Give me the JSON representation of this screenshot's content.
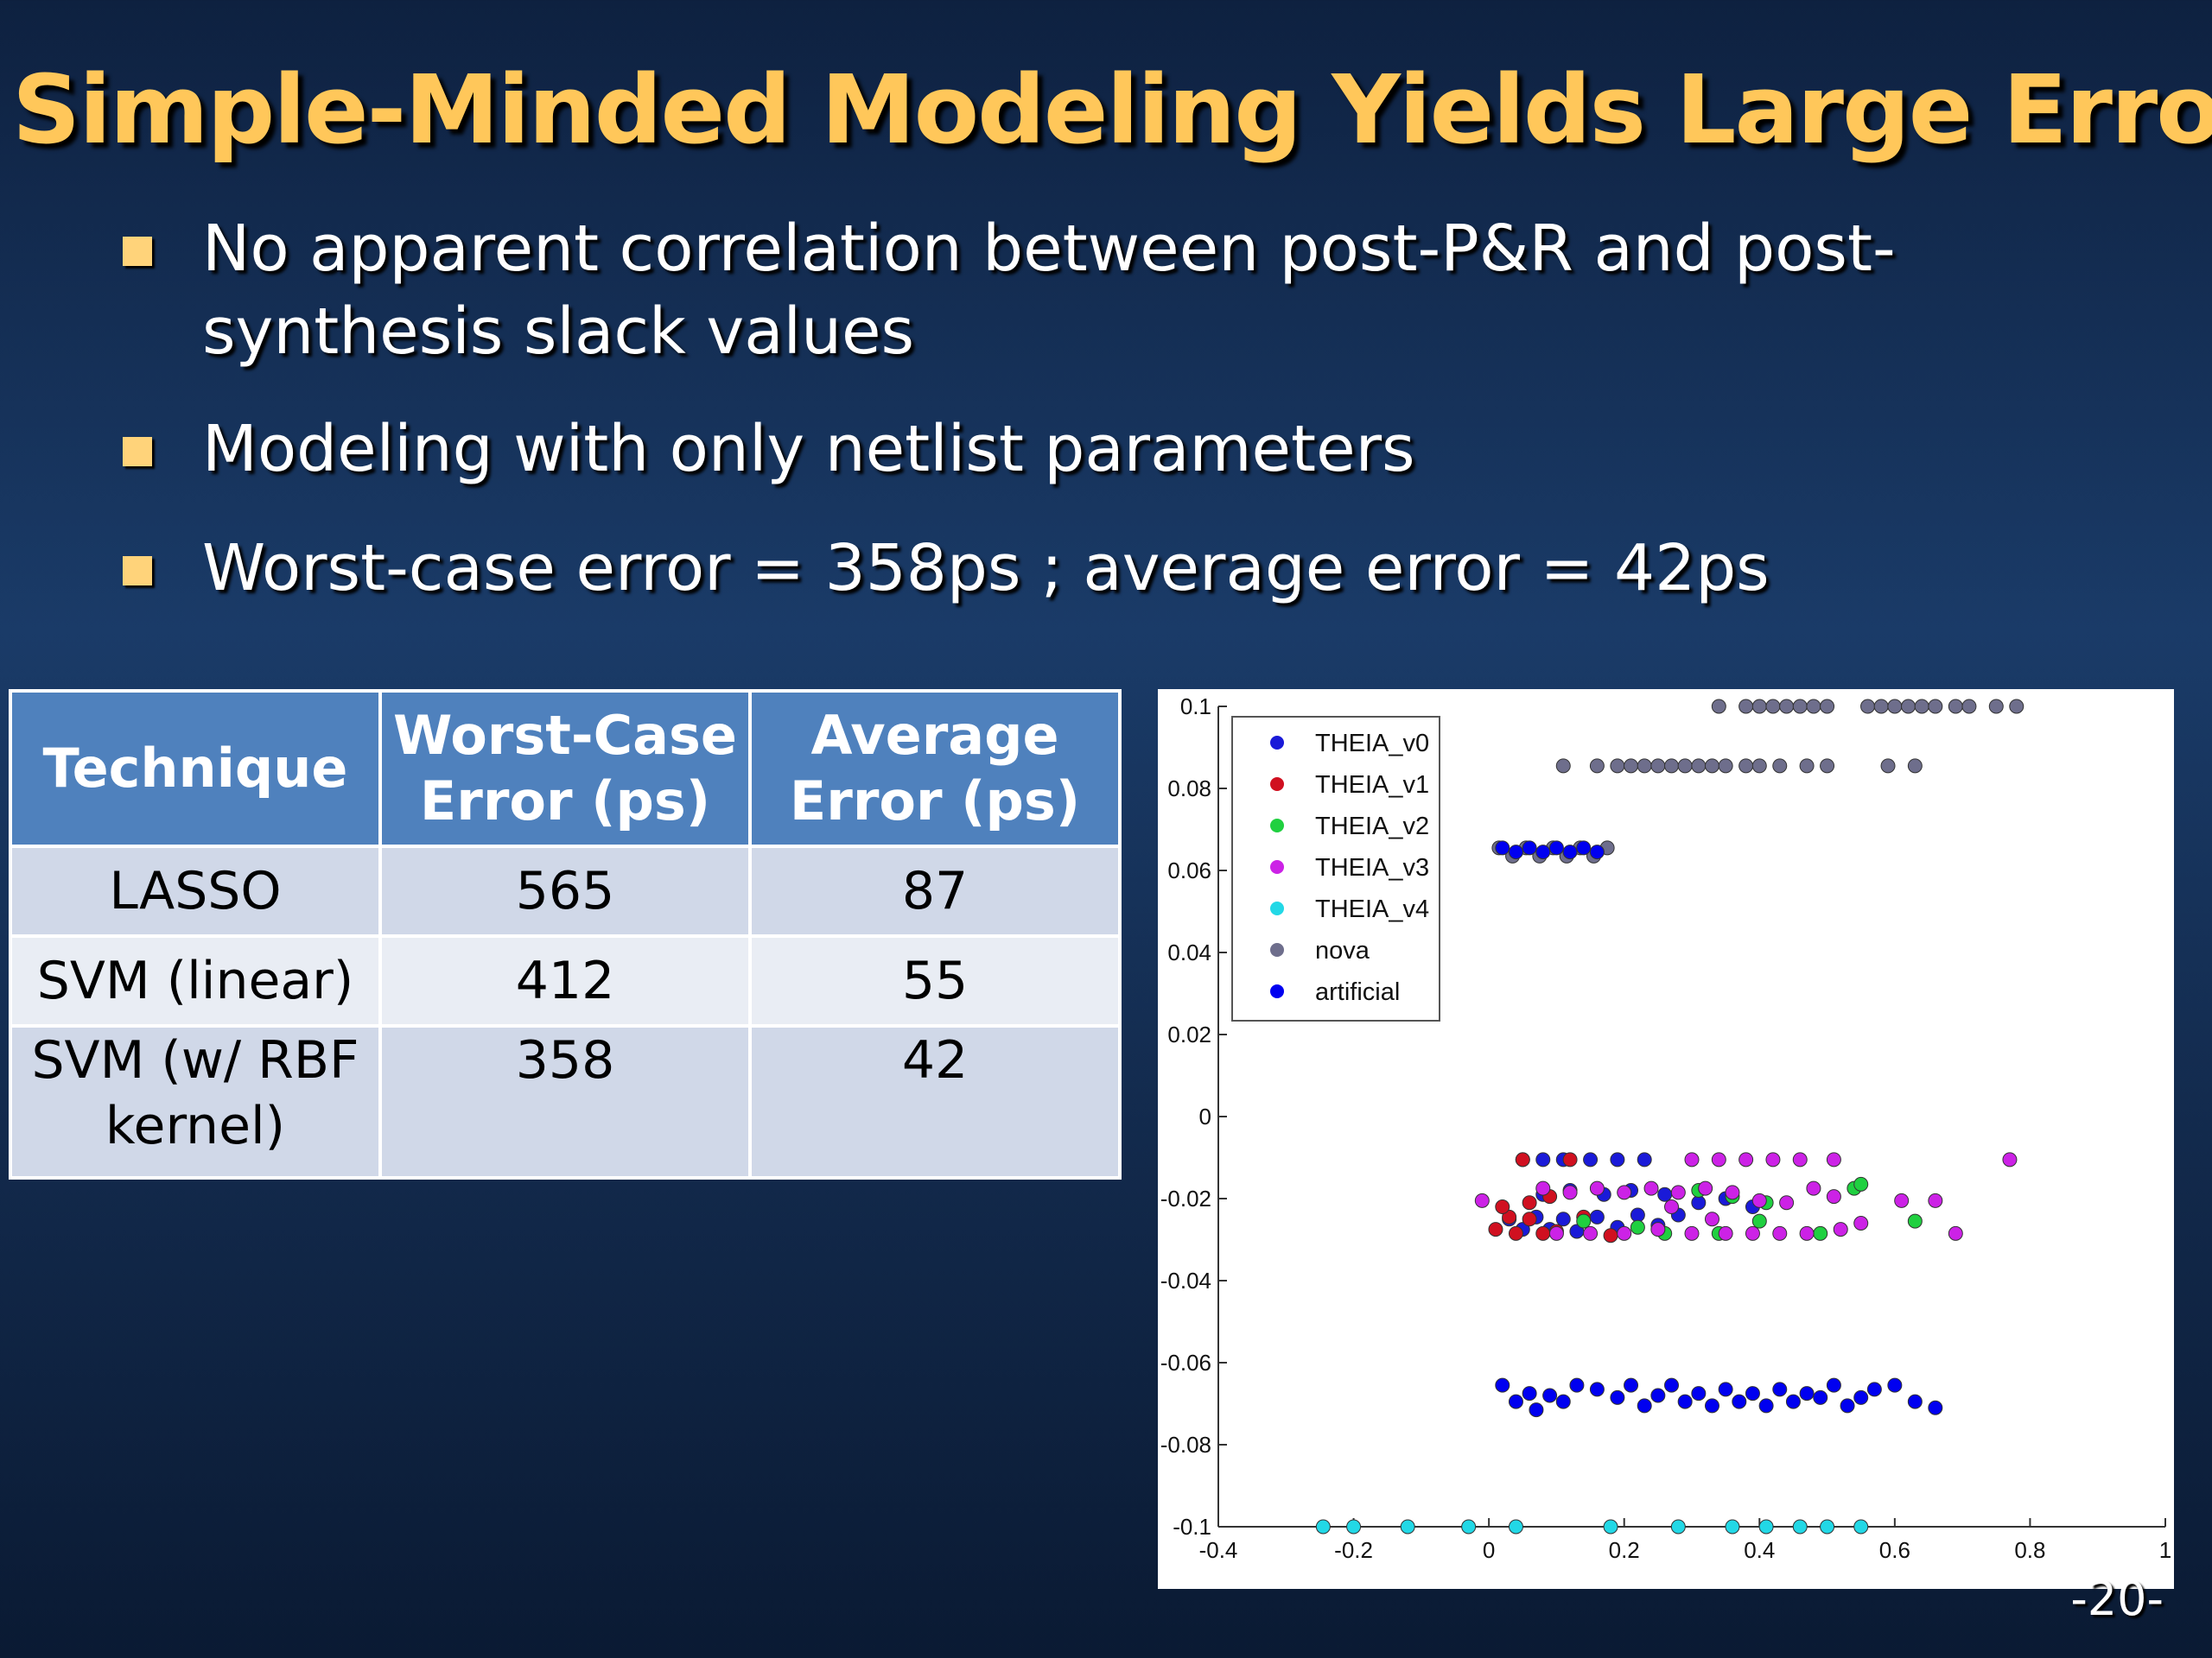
{
  "slide": {
    "title": "Simple-Minded Modeling Yields Large Errors",
    "bullets": [
      "No apparent correlation between post-P&R and post-synthesis slack values",
      "Modeling with only netlist parameters",
      "Worst-case error = 358ps ; average error = 42ps"
    ],
    "page_number": "-20-"
  },
  "table": {
    "headers": [
      "Technique",
      "Worst-Case Error (ps)",
      "Average Error (ps)"
    ],
    "rows": [
      [
        "LASSO",
        "565",
        "87"
      ],
      [
        "SVM (linear)",
        "412",
        "55"
      ],
      [
        "SVM (w/ RBF kernel)",
        "358",
        "42"
      ]
    ]
  },
  "colors": {
    "title": "#ffc75a",
    "background": "#12294b",
    "table_header": "#4f81bd",
    "table_row_dark": "#d0d8e8",
    "table_row_light": "#e9edf4"
  },
  "chart_data": {
    "type": "scatter",
    "xlim": [
      -0.4,
      1
    ],
    "ylim": [
      -0.1,
      0.1
    ],
    "x_ticks": [
      "-0.4",
      "-0.2",
      "0",
      "0.2",
      "0.4",
      "0.6",
      "0.8",
      "1"
    ],
    "y_ticks": [
      "0.1",
      "0.08",
      "0.06",
      "0.04",
      "0.02",
      "0",
      "-0.02",
      "-0.04",
      "-0.06",
      "-0.08",
      "-0.1"
    ],
    "legend_position": "top-left",
    "grid": false,
    "series": [
      {
        "name": "THEIA_v0",
        "color": "#1a1ad8",
        "points": [
          [
            0.05,
            -0.0105
          ],
          [
            0.08,
            -0.0105
          ],
          [
            0.11,
            -0.0105
          ],
          [
            0.15,
            -0.0105
          ],
          [
            0.19,
            -0.0105
          ],
          [
            0.23,
            -0.0105
          ],
          [
            0.03,
            -0.025
          ],
          [
            0.05,
            -0.0275
          ],
          [
            0.07,
            -0.0245
          ],
          [
            0.09,
            -0.0275
          ],
          [
            0.11,
            -0.025
          ],
          [
            0.13,
            -0.028
          ],
          [
            0.16,
            -0.0245
          ],
          [
            0.19,
            -0.027
          ],
          [
            0.22,
            -0.024
          ],
          [
            0.25,
            -0.0265
          ],
          [
            0.28,
            -0.024
          ],
          [
            0.31,
            -0.021
          ],
          [
            0.35,
            -0.02
          ],
          [
            0.39,
            -0.022
          ],
          [
            0.08,
            -0.019
          ],
          [
            0.12,
            -0.018
          ],
          [
            0.17,
            -0.019
          ],
          [
            0.21,
            -0.018
          ],
          [
            0.26,
            -0.019
          ]
        ]
      },
      {
        "name": "THEIA_v1",
        "color": "#d01020",
        "points": [
          [
            0.01,
            -0.0275
          ],
          [
            0.03,
            -0.0245
          ],
          [
            0.04,
            -0.0285
          ],
          [
            0.06,
            -0.025
          ],
          [
            0.08,
            -0.0285
          ],
          [
            0.02,
            -0.022
          ],
          [
            0.06,
            -0.021
          ],
          [
            0.1,
            -0.028
          ],
          [
            0.12,
            -0.0105
          ],
          [
            0.05,
            -0.0105
          ],
          [
            0.09,
            -0.0195
          ],
          [
            0.14,
            -0.0245
          ],
          [
            0.18,
            -0.029
          ]
        ]
      },
      {
        "name": "THEIA_v2",
        "color": "#20d040",
        "points": [
          [
            0.14,
            -0.0255
          ],
          [
            0.26,
            -0.0285
          ],
          [
            0.31,
            -0.018
          ],
          [
            0.36,
            -0.0195
          ],
          [
            0.4,
            -0.0255
          ],
          [
            0.49,
            -0.0285
          ],
          [
            0.54,
            -0.0175
          ],
          [
            0.55,
            -0.0165
          ],
          [
            0.63,
            -0.0255
          ],
          [
            0.22,
            -0.027
          ],
          [
            0.34,
            -0.0285
          ],
          [
            0.41,
            -0.021
          ]
        ]
      },
      {
        "name": "THEIA_v3",
        "color": "#cc22e6",
        "points": [
          [
            -0.01,
            -0.0205
          ],
          [
            0.08,
            -0.0175
          ],
          [
            0.12,
            -0.0185
          ],
          [
            0.16,
            -0.0175
          ],
          [
            0.2,
            -0.0185
          ],
          [
            0.24,
            -0.0175
          ],
          [
            0.28,
            -0.0185
          ],
          [
            0.32,
            -0.0175
          ],
          [
            0.36,
            -0.0185
          ],
          [
            0.4,
            -0.0205
          ],
          [
            0.44,
            -0.021
          ],
          [
            0.48,
            -0.0175
          ],
          [
            0.51,
            -0.0195
          ],
          [
            0.3,
            -0.0105
          ],
          [
            0.34,
            -0.0105
          ],
          [
            0.38,
            -0.0105
          ],
          [
            0.42,
            -0.0105
          ],
          [
            0.46,
            -0.0105
          ],
          [
            0.51,
            -0.0105
          ],
          [
            0.1,
            -0.0285
          ],
          [
            0.15,
            -0.0285
          ],
          [
            0.2,
            -0.0285
          ],
          [
            0.25,
            -0.0275
          ],
          [
            0.3,
            -0.0285
          ],
          [
            0.35,
            -0.0285
          ],
          [
            0.39,
            -0.0285
          ],
          [
            0.43,
            -0.0285
          ],
          [
            0.47,
            -0.0285
          ],
          [
            0.52,
            -0.0275
          ],
          [
            0.55,
            -0.026
          ],
          [
            0.61,
            -0.0205
          ],
          [
            0.66,
            -0.0205
          ],
          [
            0.69,
            -0.0285
          ],
          [
            0.77,
            -0.0105
          ],
          [
            0.27,
            -0.022
          ],
          [
            0.33,
            -0.025
          ]
        ]
      },
      {
        "name": "THEIA_v4",
        "color": "#22d8e6",
        "points": [
          [
            -0.245,
            -0.1
          ],
          [
            -0.2,
            -0.1
          ],
          [
            -0.12,
            -0.1
          ],
          [
            -0.03,
            -0.1
          ],
          [
            0.04,
            -0.1
          ],
          [
            0.18,
            -0.1
          ],
          [
            0.28,
            -0.1
          ],
          [
            0.36,
            -0.1
          ],
          [
            0.41,
            -0.1
          ],
          [
            0.46,
            -0.1
          ],
          [
            0.5,
            -0.1
          ],
          [
            0.55,
            -0.1
          ]
        ]
      },
      {
        "name": "nova",
        "color": "#6e6e8c",
        "points": [
          [
            0.34,
            0.1
          ],
          [
            0.38,
            0.1
          ],
          [
            0.4,
            0.1
          ],
          [
            0.42,
            0.1
          ],
          [
            0.44,
            0.1
          ],
          [
            0.46,
            0.1
          ],
          [
            0.48,
            0.1
          ],
          [
            0.5,
            0.1
          ],
          [
            0.56,
            0.1
          ],
          [
            0.58,
            0.1
          ],
          [
            0.6,
            0.1
          ],
          [
            0.62,
            0.1
          ],
          [
            0.64,
            0.1
          ],
          [
            0.66,
            0.1
          ],
          [
            0.69,
            0.1
          ],
          [
            0.71,
            0.1
          ],
          [
            0.75,
            0.1
          ],
          [
            0.78,
            0.1
          ],
          [
            0.11,
            0.0855
          ],
          [
            0.16,
            0.0855
          ],
          [
            0.19,
            0.0855
          ],
          [
            0.21,
            0.0855
          ],
          [
            0.23,
            0.0855
          ],
          [
            0.25,
            0.0855
          ],
          [
            0.27,
            0.0855
          ],
          [
            0.29,
            0.0855
          ],
          [
            0.31,
            0.0855
          ],
          [
            0.33,
            0.0855
          ],
          [
            0.35,
            0.0855
          ],
          [
            0.38,
            0.0855
          ],
          [
            0.4,
            0.0855
          ],
          [
            0.43,
            0.0855
          ],
          [
            0.47,
            0.0855
          ],
          [
            0.5,
            0.0855
          ],
          [
            0.59,
            0.0855
          ],
          [
            0.63,
            0.0855
          ],
          [
            0.015,
            0.0655
          ],
          [
            0.035,
            0.0635
          ],
          [
            0.055,
            0.0655
          ],
          [
            0.075,
            0.0635
          ],
          [
            0.095,
            0.0655
          ],
          [
            0.115,
            0.0635
          ],
          [
            0.135,
            0.0655
          ],
          [
            0.155,
            0.0635
          ],
          [
            0.175,
            0.0655
          ]
        ]
      },
      {
        "name": "artificial",
        "color": "#0000f0",
        "points": [
          [
            0.02,
            0.0655
          ],
          [
            0.04,
            0.0645
          ],
          [
            0.06,
            0.0655
          ],
          [
            0.08,
            0.0645
          ],
          [
            0.1,
            0.0655
          ],
          [
            0.12,
            0.0645
          ],
          [
            0.14,
            0.0655
          ],
          [
            0.16,
            0.0645
          ],
          [
            0.02,
            -0.0655
          ],
          [
            0.04,
            -0.0695
          ],
          [
            0.06,
            -0.0675
          ],
          [
            0.07,
            -0.0715
          ],
          [
            0.09,
            -0.068
          ],
          [
            0.11,
            -0.0695
          ],
          [
            0.13,
            -0.0655
          ],
          [
            0.16,
            -0.0665
          ],
          [
            0.19,
            -0.0685
          ],
          [
            0.21,
            -0.0655
          ],
          [
            0.23,
            -0.0705
          ],
          [
            0.25,
            -0.068
          ],
          [
            0.27,
            -0.0655
          ],
          [
            0.29,
            -0.0695
          ],
          [
            0.31,
            -0.0675
          ],
          [
            0.33,
            -0.0705
          ],
          [
            0.35,
            -0.0665
          ],
          [
            0.37,
            -0.0695
          ],
          [
            0.39,
            -0.0675
          ],
          [
            0.41,
            -0.0705
          ],
          [
            0.43,
            -0.0665
          ],
          [
            0.45,
            -0.0695
          ],
          [
            0.47,
            -0.0675
          ],
          [
            0.49,
            -0.0685
          ],
          [
            0.51,
            -0.0655
          ],
          [
            0.53,
            -0.0705
          ],
          [
            0.55,
            -0.0685
          ],
          [
            0.57,
            -0.0665
          ],
          [
            0.6,
            -0.0655
          ],
          [
            0.63,
            -0.0695
          ],
          [
            0.66,
            -0.071
          ]
        ]
      }
    ]
  }
}
